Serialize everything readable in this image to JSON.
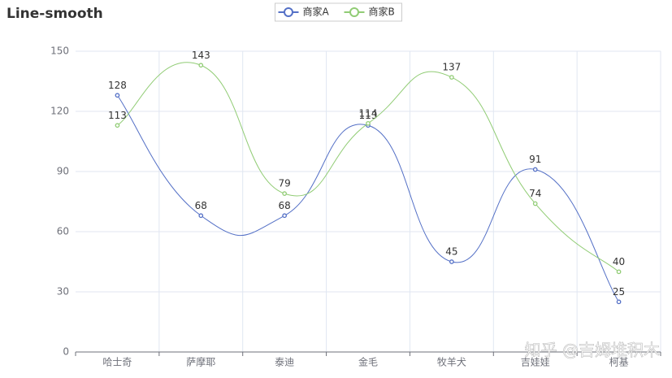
{
  "chart_data": {
    "type": "line",
    "title": "Line-smooth",
    "categories": [
      "哈士奇",
      "萨摩耶",
      "泰迪",
      "金毛",
      "牧羊犬",
      "吉娃娃",
      "柯基"
    ],
    "series": [
      {
        "name": "商家A",
        "color": "#5470c6",
        "values": [
          128,
          68,
          68,
          113,
          45,
          91,
          25
        ]
      },
      {
        "name": "商家B",
        "color": "#91cc75",
        "values": [
          113,
          143,
          79,
          114,
          137,
          74,
          40
        ]
      }
    ],
    "ylim": [
      0,
      150
    ],
    "yticks": [
      0,
      30,
      60,
      90,
      120,
      150
    ],
    "grid": true,
    "smooth": true,
    "legend": "top"
  },
  "watermark": "知乎 @吉姆堆积木"
}
